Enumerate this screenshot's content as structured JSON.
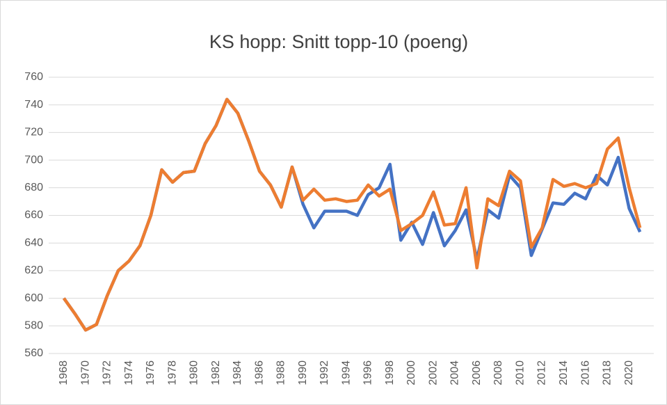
{
  "chart_data": {
    "type": "line",
    "title": "KS hopp: Snitt topp-10 (poeng)",
    "categories": [
      "1968",
      null,
      "1970",
      null,
      "1972",
      null,
      "1974",
      null,
      "1976",
      null,
      "1978",
      null,
      "1980",
      null,
      "1982",
      null,
      "1984",
      null,
      "1986",
      null,
      "1988",
      null,
      "1990",
      null,
      "1992",
      null,
      "1994",
      null,
      "1996",
      null,
      "1998",
      null,
      "2000",
      null,
      "2002",
      null,
      "2004",
      null,
      "2006",
      null,
      "2008",
      null,
      "2010",
      null,
      "2012",
      null,
      "2014",
      null,
      "2016",
      null,
      "2018",
      null,
      "2020",
      null
    ],
    "series": [
      {
        "color": "#4472c4",
        "values": [
          600,
          589,
          577,
          581,
          602,
          620,
          627,
          638,
          660,
          693,
          684,
          691,
          692,
          712,
          725,
          744,
          734,
          714,
          692,
          682,
          666,
          695,
          668,
          651,
          663,
          663,
          663,
          660,
          675,
          680,
          697,
          642,
          655,
          639,
          662,
          638,
          649,
          664,
          628,
          664,
          658,
          689,
          680,
          631,
          650,
          669,
          668,
          676,
          672,
          689,
          682,
          702,
          665,
          648
        ]
      },
      {
        "color": "#ed7d31",
        "values": [
          600,
          589,
          577,
          581,
          602,
          620,
          627,
          638,
          660,
          693,
          684,
          691,
          692,
          712,
          725,
          744,
          734,
          714,
          692,
          682,
          666,
          695,
          671,
          679,
          671,
          672,
          670,
          671,
          682,
          674,
          679,
          649,
          654,
          660,
          677,
          653,
          654,
          680,
          622,
          672,
          667,
          692,
          685,
          637,
          651,
          686,
          681,
          683,
          680,
          683,
          708,
          716,
          680,
          651
        ]
      }
    ],
    "ylim": [
      560,
      760
    ],
    "yticks": [
      560,
      580,
      600,
      620,
      640,
      660,
      680,
      700,
      720,
      740,
      760
    ],
    "grid": true
  }
}
